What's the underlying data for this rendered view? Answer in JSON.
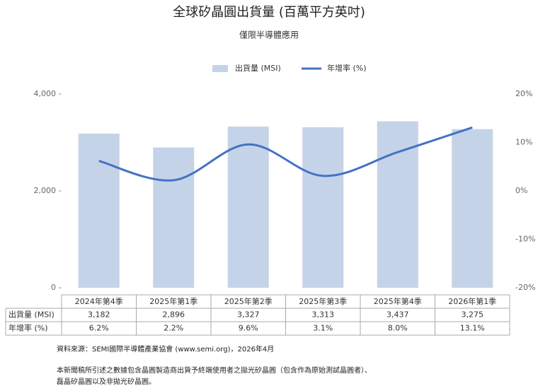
{
  "chart_data": {
    "type": "bar-line",
    "title": "全球矽晶圓出貨量 (百萬平方英吋)",
    "subtitle": "僅限半導體應用",
    "categories": [
      "2024年第4季",
      "2025年第1季",
      "2025年第2季",
      "2025年第3季",
      "2025年第4季",
      "2026年第1季"
    ],
    "series": [
      {
        "name": "出貨量 (MSI)",
        "type": "bar",
        "color": "#c5d3e8",
        "values": [
          3182,
          2896,
          3327,
          3313,
          3437,
          3275
        ],
        "value_labels": [
          "3,182",
          "2,896",
          "3,327",
          "3,313",
          "3,437",
          "3,275"
        ]
      },
      {
        "name": "年增率 (%)",
        "type": "line",
        "axis": "y2",
        "color": "#4472c4",
        "values": [
          6.2,
          2.2,
          9.6,
          3.1,
          8.0,
          13.1
        ],
        "value_labels": [
          "6.2%",
          "2.2%",
          "9.6%",
          "3.1%",
          "8.0%",
          "13.1%"
        ]
      }
    ],
    "ylim": [
      0,
      4000
    ],
    "yticks": [
      0,
      {
        "value": 2000,
        "label": "2,000"
      },
      {
        "value": 4000,
        "label": "4,000"
      }
    ],
    "y2lim": [
      -20,
      20
    ],
    "y2ticks": [
      {
        "value": -20,
        "label": "-20%"
      },
      {
        "value": -10,
        "label": "-10%"
      },
      {
        "value": 0,
        "label": "0%"
      },
      {
        "value": 10,
        "label": "10%"
      },
      {
        "value": 20,
        "label": "20%"
      }
    ],
    "legend": "top",
    "source": "資料來源：SEMI國際半導體產業協會 (www.semi.org)，2026年4月",
    "notes": [
      "本新聞稿所引述之數據包含晶圓製造商出貨予終端使用者之拋光矽晶圓（包含作為原始測試晶圓者）、",
      "磊晶矽晶圓以及非拋光矽晶圓。"
    ]
  }
}
